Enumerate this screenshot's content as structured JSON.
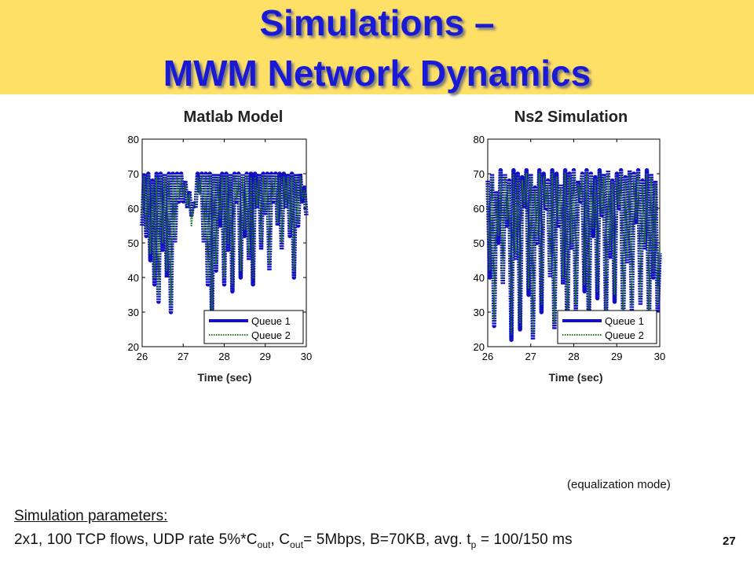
{
  "slide": {
    "title_line1": "Simulations –",
    "title_line2": "MWM Network Dynamics",
    "note": "(equalization mode)",
    "params_label": "Simulation parameters:",
    "params": {
      "p1": "2x1, 100 TCP flows, UDP rate 5%*C",
      "s1": "out",
      "p2": ", C",
      "s2": "out",
      "p3": "= 5Mbps, B=70KB, avg. t",
      "s3": "p",
      "p4": " = 100/150 ms"
    },
    "page_number": "27"
  },
  "colors": {
    "title_band": "#ffe066",
    "title_text": "#1a1ad6",
    "queue1": "#1010c0",
    "queue2": "#1f7a1f"
  },
  "chart_data": [
    {
      "type": "line",
      "title": "Matlab Model",
      "xlabel": "Time (sec)",
      "xlim": [
        26,
        30
      ],
      "ylim": [
        20,
        80
      ],
      "xticks": [
        "26",
        "27",
        "28",
        "29",
        "30"
      ],
      "yticks": [
        "20",
        "30",
        "40",
        "50",
        "60",
        "70",
        "80"
      ],
      "legend": {
        "position": "bottom-right",
        "entries": [
          "Queue 1",
          "Queue 2"
        ]
      },
      "series": [
        {
          "name": "Queue 1",
          "x": [
            26.0,
            26.05,
            26.1,
            26.15,
            26.2,
            26.25,
            26.3,
            26.35,
            26.4,
            26.45,
            26.5,
            26.55,
            26.6,
            26.65,
            26.7,
            26.75,
            26.8,
            26.85,
            26.9,
            26.95,
            27.0,
            27.05,
            27.1,
            27.15,
            27.2,
            27.25,
            27.3,
            27.35,
            27.4,
            27.45,
            27.5,
            27.55,
            27.6,
            27.65,
            27.7,
            27.75,
            27.8,
            27.85,
            27.9,
            27.95,
            28.0,
            28.05,
            28.1,
            28.15,
            28.2,
            28.25,
            28.3,
            28.35,
            28.4,
            28.45,
            28.5,
            28.55,
            28.6,
            28.65,
            28.7,
            28.75,
            28.8,
            28.85,
            28.9,
            28.95,
            29.0,
            29.05,
            29.1,
            29.15,
            29.2,
            29.25,
            29.3,
            29.35,
            29.4,
            29.45,
            29.5,
            29.55,
            29.6,
            29.65,
            29.7,
            29.75,
            29.8,
            29.85,
            29.9,
            29.95,
            30.0
          ],
          "y": [
            55,
            70,
            52,
            70,
            45,
            68,
            38,
            70,
            33,
            70,
            48,
            70,
            40,
            70,
            30,
            70,
            50,
            70,
            62,
            70,
            62,
            68,
            60,
            65,
            58,
            62,
            60,
            70,
            65,
            70,
            50,
            70,
            38,
            70,
            28,
            70,
            42,
            70,
            55,
            70,
            38,
            70,
            48,
            70,
            36,
            70,
            62,
            70,
            40,
            70,
            52,
            70,
            45,
            70,
            38,
            70,
            60,
            70,
            48,
            70,
            58,
            70,
            42,
            70,
            62,
            70,
            55,
            70,
            48,
            70,
            60,
            70,
            52,
            70,
            40,
            70,
            55,
            70,
            62,
            66,
            58
          ]
        },
        {
          "name": "Queue 2",
          "x": [
            26.0,
            26.05,
            26.1,
            26.15,
            26.2,
            26.25,
            26.3,
            26.35,
            26.4,
            26.45,
            26.5,
            26.55,
            26.6,
            26.65,
            26.7,
            26.75,
            26.8,
            26.85,
            26.9,
            26.95,
            27.0,
            27.05,
            27.1,
            27.15,
            27.2,
            27.25,
            27.3,
            27.35,
            27.4,
            27.45,
            27.5,
            27.55,
            27.6,
            27.65,
            27.7,
            27.75,
            27.8,
            27.85,
            27.9,
            27.95,
            28.0,
            28.05,
            28.1,
            28.15,
            28.2,
            28.25,
            28.3,
            28.35,
            28.4,
            28.45,
            28.5,
            28.55,
            28.6,
            28.65,
            28.7,
            28.75,
            28.8,
            28.85,
            28.9,
            28.95,
            29.0,
            29.05,
            29.1,
            29.15,
            29.2,
            29.25,
            29.3,
            29.35,
            29.4,
            29.45,
            29.5,
            29.55,
            29.6,
            29.65,
            29.7,
            29.75,
            29.8,
            29.85,
            29.9,
            29.95,
            30.0
          ],
          "y": [
            58,
            69,
            54,
            69,
            47,
            67,
            40,
            69,
            35,
            69,
            50,
            69,
            42,
            69,
            32,
            69,
            52,
            69,
            63,
            69,
            63,
            67,
            61,
            64,
            55,
            61,
            61,
            69,
            64,
            69,
            52,
            69,
            40,
            69,
            30,
            69,
            44,
            69,
            57,
            69,
            40,
            69,
            50,
            69,
            38,
            69,
            63,
            69,
            42,
            69,
            54,
            69,
            47,
            69,
            40,
            69,
            61,
            69,
            50,
            69,
            59,
            69,
            44,
            69,
            63,
            69,
            56,
            69,
            50,
            69,
            61,
            69,
            54,
            69,
            42,
            69,
            56,
            69,
            63,
            65,
            59
          ]
        }
      ]
    },
    {
      "type": "line",
      "title": "Ns2 Simulation",
      "xlabel": "Time (sec)",
      "xlim": [
        26,
        30
      ],
      "ylim": [
        20,
        80
      ],
      "xticks": [
        "26",
        "27",
        "28",
        "29",
        "30"
      ],
      "yticks": [
        "20",
        "30",
        "40",
        "50",
        "60",
        "70",
        "80"
      ],
      "legend": {
        "position": "bottom-right",
        "entries": [
          "Queue 1",
          "Queue 2"
        ]
      },
      "series": [
        {
          "name": "Queue 1",
          "x": [
            26.0,
            26.05,
            26.1,
            26.15,
            26.2,
            26.25,
            26.3,
            26.35,
            26.4,
            26.45,
            26.5,
            26.55,
            26.6,
            26.65,
            26.7,
            26.75,
            26.8,
            26.85,
            26.9,
            26.95,
            27.0,
            27.05,
            27.1,
            27.15,
            27.2,
            27.25,
            27.3,
            27.35,
            27.4,
            27.45,
            27.5,
            27.55,
            27.6,
            27.65,
            27.7,
            27.75,
            27.8,
            27.85,
            27.9,
            27.95,
            28.0,
            28.05,
            28.1,
            28.15,
            28.2,
            28.25,
            28.3,
            28.35,
            28.4,
            28.45,
            28.5,
            28.55,
            28.6,
            28.65,
            28.7,
            28.75,
            28.8,
            28.85,
            28.9,
            28.95,
            29.0,
            29.05,
            29.1,
            29.15,
            29.2,
            29.25,
            29.3,
            29.35,
            29.4,
            29.45,
            29.5,
            29.55,
            29.6,
            29.65,
            29.7,
            29.75,
            29.8,
            29.85,
            29.9,
            29.95,
            30.0
          ],
          "y": [
            68,
            40,
            70,
            26,
            65,
            50,
            71,
            38,
            70,
            55,
            68,
            22,
            71,
            45,
            70,
            25,
            69,
            60,
            71,
            35,
            70,
            22,
            66,
            50,
            71,
            30,
            70,
            60,
            68,
            40,
            71,
            25,
            70,
            55,
            67,
            38,
            71,
            22,
            70,
            48,
            71,
            30,
            68,
            62,
            70,
            36,
            71,
            25,
            70,
            52,
            69,
            34,
            71,
            58,
            70,
            28,
            71,
            46,
            68,
            33,
            70,
            60,
            71,
            26,
            69,
            44,
            71,
            30,
            70,
            56,
            71,
            32,
            68,
            48,
            71,
            26,
            70,
            40,
            68,
            30,
            47
          ]
        },
        {
          "name": "Queue 2",
          "x": [
            26.0,
            26.05,
            26.1,
            26.15,
            26.2,
            26.25,
            26.3,
            26.35,
            26.4,
            26.45,
            26.5,
            26.55,
            26.6,
            26.65,
            26.7,
            26.75,
            26.8,
            26.85,
            26.9,
            26.95,
            27.0,
            27.05,
            27.1,
            27.15,
            27.2,
            27.25,
            27.3,
            27.35,
            27.4,
            27.45,
            27.5,
            27.55,
            27.6,
            27.65,
            27.7,
            27.75,
            27.8,
            27.85,
            27.9,
            27.95,
            28.0,
            28.05,
            28.1,
            28.15,
            28.2,
            28.25,
            28.3,
            28.35,
            28.4,
            28.45,
            28.5,
            28.55,
            28.6,
            28.65,
            28.7,
            28.75,
            28.8,
            28.85,
            28.9,
            28.95,
            29.0,
            29.05,
            29.1,
            29.15,
            29.2,
            29.25,
            29.3,
            29.35,
            29.4,
            29.45,
            29.5,
            29.55,
            29.6,
            29.65,
            29.7,
            29.75,
            29.8,
            29.85,
            29.9,
            29.95,
            30.0
          ],
          "y": [
            67,
            42,
            69,
            28,
            64,
            52,
            70,
            40,
            69,
            57,
            67,
            24,
            70,
            47,
            69,
            27,
            68,
            61,
            70,
            37,
            69,
            24,
            65,
            52,
            70,
            32,
            69,
            61,
            67,
            42,
            70,
            27,
            69,
            57,
            66,
            40,
            70,
            24,
            69,
            50,
            70,
            32,
            67,
            63,
            69,
            38,
            70,
            27,
            69,
            54,
            68,
            36,
            70,
            59,
            69,
            30,
            70,
            48,
            67,
            35,
            69,
            61,
            70,
            28,
            68,
            46,
            70,
            32,
            69,
            57,
            70,
            34,
            67,
            50,
            70,
            28,
            69,
            42,
            67,
            32,
            49
          ]
        }
      ]
    }
  ]
}
